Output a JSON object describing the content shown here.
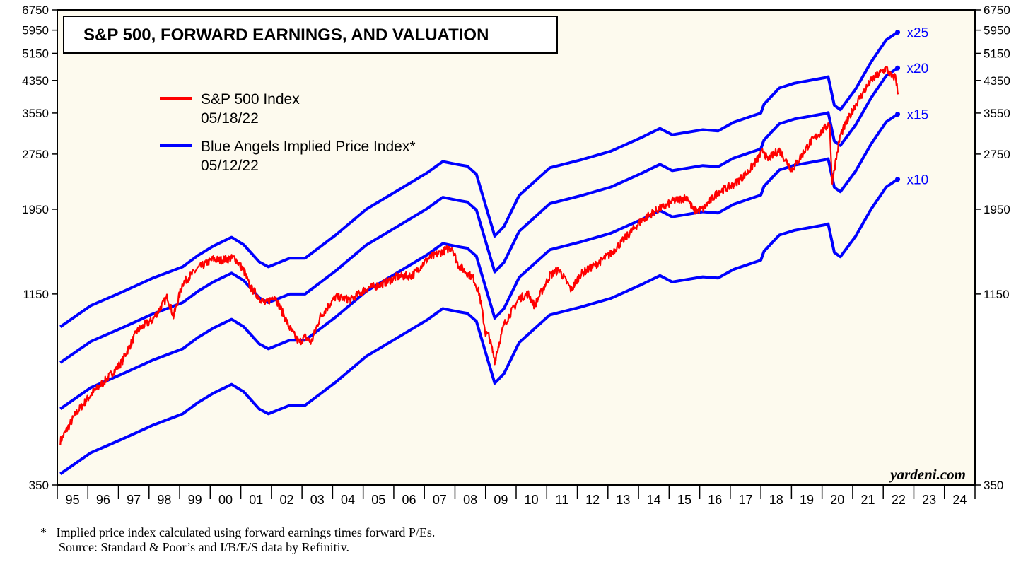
{
  "chart_data": {
    "type": "line",
    "title": "S&P 500, FORWARD EARNINGS, AND VALUATION",
    "y_scale": "log",
    "ylim": [
      350,
      6750
    ],
    "yticks": [
      350,
      1150,
      1950,
      2750,
      3550,
      4350,
      5150,
      5950,
      6750
    ],
    "xlim": [
      1994.9,
      2024.9
    ],
    "x_tick_labels": [
      "95",
      "96",
      "97",
      "98",
      "99",
      "00",
      "01",
      "02",
      "03",
      "04",
      "05",
      "06",
      "07",
      "08",
      "09",
      "10",
      "11",
      "12",
      "13",
      "14",
      "15",
      "16",
      "17",
      "18",
      "19",
      "20",
      "21",
      "22",
      "23",
      "24"
    ],
    "legend": [
      {
        "label": "S&P 500 Index",
        "date": "05/18/22",
        "color": "#ff0000"
      },
      {
        "label": "Blue Angels Implied Price Index*",
        "date": "05/12/22",
        "color": "#0000ff"
      }
    ],
    "forward_earnings_x": [
      1995.0,
      1996.0,
      1997.0,
      1998.0,
      1999.0,
      1999.5,
      2000.0,
      2000.6,
      2001.0,
      2001.5,
      2001.8,
      2002.5,
      2003.0,
      2004.0,
      2005.0,
      2006.0,
      2007.0,
      2007.5,
      2008.0,
      2008.3,
      2008.6,
      2008.9,
      2009.2,
      2009.5,
      2010.0,
      2011.0,
      2012.0,
      2013.0,
      2014.0,
      2014.6,
      2015.0,
      2016.0,
      2016.5,
      2017.0,
      2017.9,
      2018.0,
      2018.5,
      2019.0,
      2020.0,
      2020.1,
      2020.3,
      2020.5,
      2021.0,
      2021.5,
      2022.0,
      2022.37
    ],
    "forward_earnings_y": [
      37.5,
      42.8,
      46.5,
      50.7,
      54.5,
      58.5,
      62.0,
      65.5,
      62.5,
      56.2,
      54.5,
      57.5,
      57.5,
      66.4,
      78.0,
      87.4,
      98.0,
      105.0,
      103.0,
      102.0,
      97.0,
      80.0,
      66.0,
      70.0,
      85.0,
      101.0,
      106.0,
      112.0,
      122.0,
      129.0,
      124.0,
      128.0,
      127.0,
      134.0,
      142.0,
      150.0,
      166.0,
      171.0,
      177.0,
      178.0,
      149.0,
      145.0,
      165.0,
      195.0,
      224.0,
      235.0
    ],
    "series": [
      {
        "name": "x25",
        "multiplier": 25,
        "color": "#0000ff"
      },
      {
        "name": "x20",
        "multiplier": 20,
        "color": "#0000ff"
      },
      {
        "name": "x15",
        "multiplier": 15,
        "color": "#0000ff"
      },
      {
        "name": "x10",
        "multiplier": 10,
        "color": "#0000ff"
      },
      {
        "name": "S&P 500 Index",
        "color": "#ff0000",
        "x": [
          1995.0,
          1995.5,
          1996.0,
          1996.5,
          1997.0,
          1997.5,
          1997.8,
          1998.0,
          1998.5,
          1998.7,
          1999.0,
          1999.5,
          2000.0,
          2000.2,
          2000.7,
          2001.0,
          2001.2,
          2001.7,
          2002.0,
          2002.5,
          2002.8,
          2003.0,
          2003.2,
          2003.5,
          2004.0,
          2004.5,
          2005.0,
          2005.5,
          2006.0,
          2006.5,
          2007.0,
          2007.5,
          2007.8,
          2008.0,
          2008.3,
          2008.5,
          2008.7,
          2008.9,
          2009.0,
          2009.2,
          2009.5,
          2010.0,
          2010.3,
          2010.5,
          2011.0,
          2011.3,
          2011.7,
          2012.0,
          2012.5,
          2013.0,
          2013.5,
          2014.0,
          2014.5,
          2014.8,
          2015.0,
          2015.5,
          2015.7,
          2016.0,
          2016.5,
          2017.0,
          2017.5,
          2018.0,
          2018.1,
          2018.5,
          2018.9,
          2019.0,
          2019.5,
          2020.0,
          2020.15,
          2020.22,
          2020.5,
          2021.0,
          2021.5,
          2022.0,
          2022.2,
          2022.3,
          2022.38
        ],
        "y": [
          460,
          545,
          615,
          675,
          750,
          910,
          955,
          975,
          1130,
          1000,
          1230,
          1350,
          1430,
          1420,
          1440,
          1330,
          1200,
          1080,
          1140,
          930,
          850,
          880,
          850,
          1000,
          1130,
          1110,
          1190,
          1220,
          1280,
          1290,
          1430,
          1500,
          1540,
          1380,
          1310,
          1270,
          1150,
          900,
          890,
          760,
          950,
          1120,
          1150,
          1070,
          1290,
          1340,
          1180,
          1300,
          1380,
          1480,
          1640,
          1820,
          1940,
          1990,
          2050,
          2100,
          1930,
          1950,
          2170,
          2270,
          2470,
          2820,
          2650,
          2820,
          2500,
          2550,
          2950,
          3230,
          3350,
          2300,
          3100,
          3750,
          4350,
          4700,
          4400,
          4500,
          3990
        ]
      }
    ],
    "multiplier_labels": [
      "x25",
      "x20",
      "x15",
      "x10"
    ],
    "source_mark": "yardeni.com"
  },
  "footnote": {
    "marker": "*",
    "line1": "Implied price index calculated using forward earnings times forward P/Es.",
    "line2": "Source: Standard & Poor’s and I/B/E/S data by Refinitiv."
  }
}
